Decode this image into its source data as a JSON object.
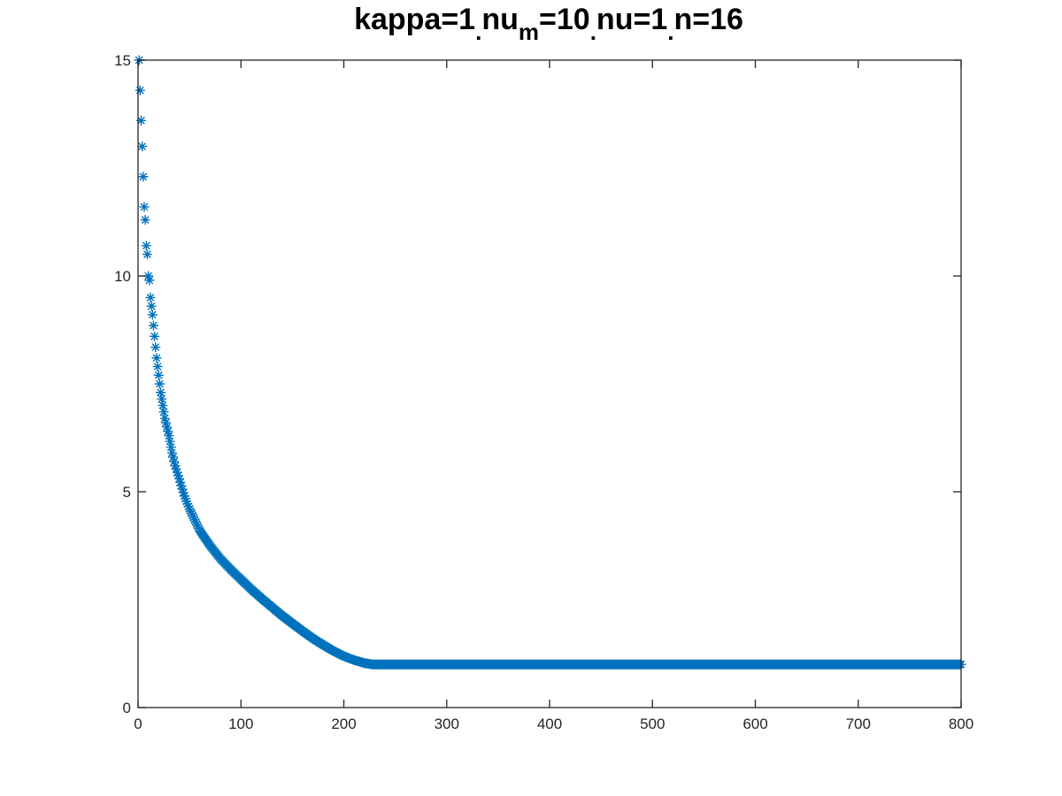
{
  "chart_data": {
    "type": "scatter",
    "title_parts": [
      {
        "text": "kappa=1",
        "sub": false
      },
      {
        "text": ".",
        "sub": true
      },
      {
        "text": "nu",
        "sub": false
      },
      {
        "text": "m",
        "sub": true
      },
      {
        "text": "=10",
        "sub": false
      },
      {
        "text": ".",
        "sub": true
      },
      {
        "text": "nu=1",
        "sub": false
      },
      {
        "text": ".",
        "sub": true
      },
      {
        "text": "n=16",
        "sub": false
      }
    ],
    "xlabel": "",
    "ylabel": "",
    "xlim": [
      0,
      800
    ],
    "ylim": [
      0,
      15
    ],
    "xticks": [
      0,
      100,
      200,
      300,
      400,
      500,
      600,
      700,
      800
    ],
    "yticks": [
      0,
      5,
      10,
      15
    ],
    "grid": false,
    "legend": "none",
    "marker": "asterisk",
    "color": "#0072BD",
    "series": [
      {
        "x": [
          1,
          3,
          4,
          5,
          6,
          7,
          8,
          9,
          10,
          11,
          12,
          14,
          16,
          18,
          20,
          22,
          24,
          26,
          28,
          30,
          33,
          36,
          40,
          45,
          50,
          55,
          60,
          70,
          80,
          90,
          100,
          110,
          120,
          130,
          140,
          150,
          160,
          170,
          180,
          190,
          200,
          210,
          220,
          228,
          232,
          240,
          250,
          275,
          300,
          325,
          350,
          375,
          400,
          425,
          450,
          475,
          500,
          525,
          550,
          575,
          600,
          625,
          650,
          675,
          700,
          725,
          750,
          775,
          800
        ],
        "y": [
          15.0,
          13.6,
          13.0,
          12.3,
          11.6,
          11.3,
          10.7,
          10.5,
          10.0,
          9.9,
          9.5,
          9.1,
          8.6,
          8.1,
          7.7,
          7.3,
          7.0,
          6.7,
          6.5,
          6.3,
          5.9,
          5.6,
          5.3,
          4.9,
          4.6,
          4.35,
          4.1,
          3.75,
          3.45,
          3.2,
          2.97,
          2.74,
          2.53,
          2.33,
          2.13,
          1.95,
          1.77,
          1.6,
          1.45,
          1.31,
          1.19,
          1.1,
          1.03,
          1.0,
          1.0,
          1.0,
          1.0,
          1.0,
          1.0,
          1.0,
          1.0,
          1.0,
          1.0,
          1.0,
          1.0,
          1.0,
          1.0,
          1.0,
          1.0,
          1.0,
          1.0,
          1.0,
          1.0,
          1.0,
          1.0,
          1.0,
          1.0,
          1.0,
          1.0
        ]
      }
    ]
  }
}
